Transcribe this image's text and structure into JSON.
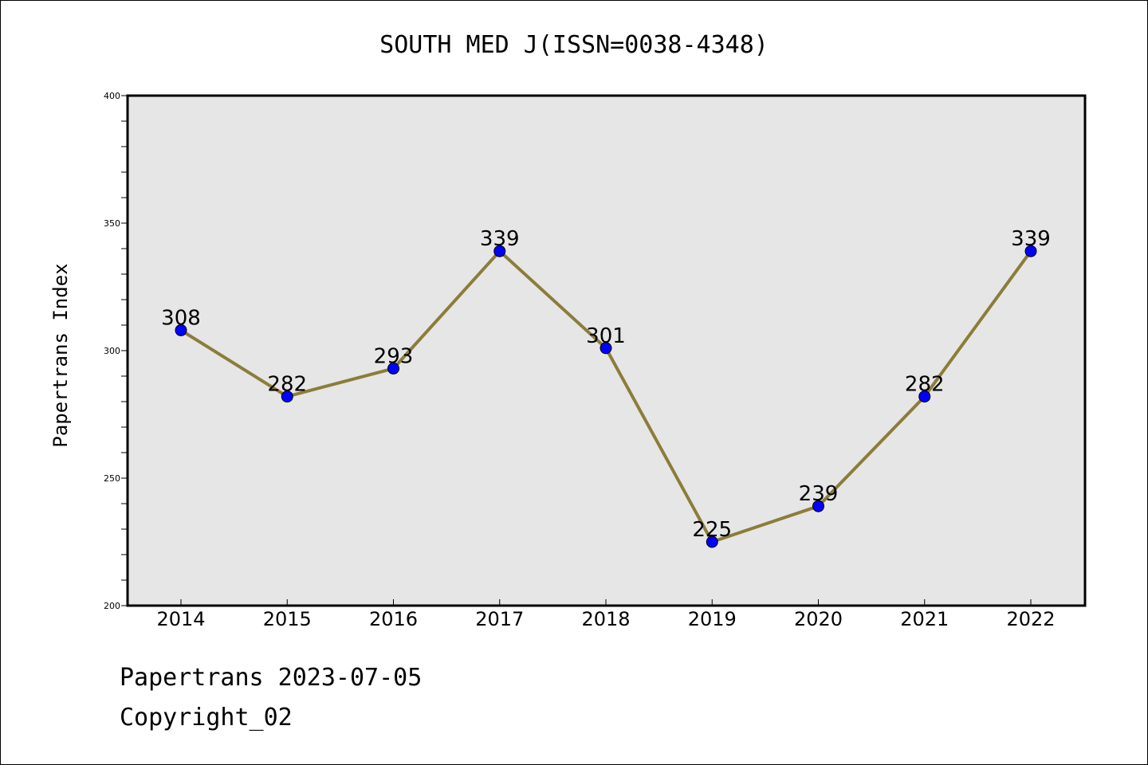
{
  "chart_data": {
    "type": "line",
    "title": "SOUTH MED J(ISSN=0038-4348)",
    "xlabel": "",
    "ylabel": "Papertrans Index",
    "categories": [
      "2014",
      "2015",
      "2016",
      "2017",
      "2018",
      "2019",
      "2020",
      "2021",
      "2022"
    ],
    "values": [
      308,
      282,
      293,
      339,
      301,
      225,
      239,
      282,
      339
    ],
    "data_labels": [
      "308",
      "282",
      "293",
      "339",
      "301",
      "225",
      "239",
      "282",
      "339"
    ],
    "ylim": [
      200,
      400
    ],
    "yticks": [
      200,
      250,
      300,
      350,
      400
    ],
    "grid": false,
    "plot_background": "#e6e6e6",
    "line_color": "#8b7d3a",
    "marker_color": "#0000ff"
  },
  "footer": {
    "line1": "Papertrans 2023-07-05",
    "line2": "Copyright_02"
  }
}
